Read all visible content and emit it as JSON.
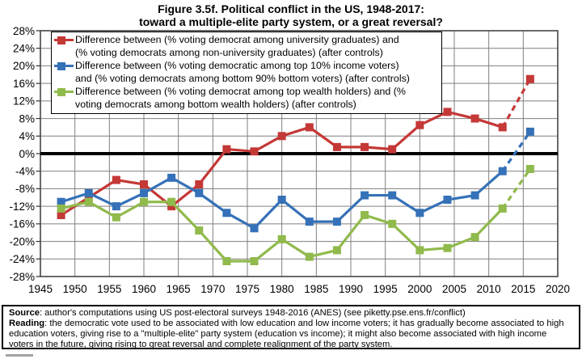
{
  "title": {
    "line1": "Figure 3.5f. Political conflict in the US, 1948-2017:",
    "line2": "toward a multiple-elite party system, or a great reversal?"
  },
  "legend": {
    "entries": [
      {
        "series": "education",
        "line1": "Difference between (% voting democrat among university graduates) and",
        "line2": "(% voting democrats among non-university graduates) (after controls)"
      },
      {
        "series": "income",
        "line1": "Difference between (% voting democratic among top 10% income voters)",
        "line2": "and (% voting democrats among bottom 90% bottom voters) (after controls)"
      },
      {
        "series": "wealth",
        "line1": "Difference between (% voting democrat among top wealth holders) and (%",
        "line2": "voting democrats among bottom wealth holders) (after controls)"
      }
    ]
  },
  "chart_data": {
    "type": "line",
    "title": "Figure 3.5f. Political conflict in the US, 1948-2017: toward a multiple-elite party system, or a great reversal?",
    "x": [
      1948,
      1952,
      1956,
      1960,
      1964,
      1968,
      1972,
      1976,
      1980,
      1984,
      1988,
      1992,
      1996,
      2000,
      2004,
      2008,
      2012,
      2016
    ],
    "series": [
      {
        "name": "education-difference",
        "label": "Difference between (% voting democrat among university graduates) and (% voting democrats among non-university graduates) (after controls)",
        "color": "#c43836",
        "values": [
          -14,
          -10,
          -6,
          -7,
          -12,
          -7,
          1,
          0.5,
          4,
          6,
          1.5,
          1.5,
          1,
          6.5,
          9.5,
          8,
          6,
          17
        ]
      },
      {
        "name": "income-difference",
        "label": "Difference between (% voting democratic among top 10% income voters) and (% voting democrats among bottom 90% bottom voters) (after controls)",
        "color": "#3571b8",
        "values": [
          -11,
          -9,
          -12,
          -9,
          -5.5,
          -9,
          -13.5,
          -17,
          -10.5,
          -15.5,
          -15.5,
          -9.5,
          -9.5,
          -13.5,
          -10.5,
          -9.5,
          -4,
          5
        ]
      },
      {
        "name": "wealth-difference",
        "label": "Difference between (% voting democrat among top wealth holders) and (% voting democrats among bottom wealth holders) (after controls)",
        "color": "#90ba4c",
        "values": [
          -12.5,
          -11,
          -14.5,
          -11,
          -11,
          -17.5,
          -24.5,
          -24.5,
          -19.5,
          -23.5,
          -22,
          -14,
          -16,
          -22,
          -21.5,
          -19,
          -12.5,
          -3.5
        ]
      }
    ],
    "dashed_last_segment": true,
    "xlim": [
      1945,
      2020
    ],
    "ylim": [
      -28,
      28
    ],
    "xticks": [
      1945,
      1950,
      1955,
      1960,
      1965,
      1970,
      1975,
      1980,
      1985,
      1990,
      1995,
      2000,
      2005,
      2010,
      2015,
      2020
    ],
    "yticks": [
      28,
      24,
      20,
      16,
      12,
      8,
      4,
      0,
      -4,
      -8,
      -12,
      -16,
      -20,
      -24,
      -28
    ],
    "yticklabels": [
      "28%",
      "24%",
      "20%",
      "16%",
      "12%",
      "8%",
      "4%",
      "0%",
      "-4%",
      "-8%",
      "-12%",
      "-16%",
      "-20%",
      "-24%",
      "-28%"
    ],
    "grid": true,
    "zero_line": true,
    "legend_position": "top-left-inside"
  },
  "footer": {
    "source_label": "Source",
    "source_text": ": author's computations using US post-electoral surveys 1948-2016 (ANES) (see piketty.pse.ens.fr/conflict)",
    "reading_label": "Reading",
    "reading_text": ": the democratic vote used to be associated with low education and low income voters; it has gradually become associated to high education voters, giving rise to a \"multiple-elite\" party system (education vs income); it might also become associated with high income voters in the future, giving rising to great reversal and complete realignment of the party system."
  }
}
